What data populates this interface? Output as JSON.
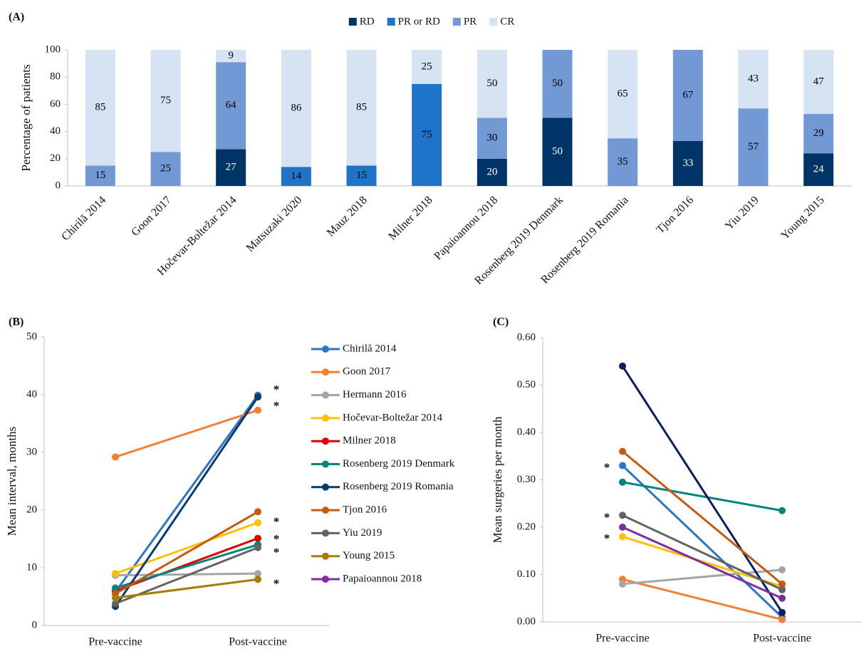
{
  "chart_data": [
    {
      "type": "bar",
      "stacked": true,
      "label": "(A)",
      "ylabel": "Percentage of patients",
      "categories": [
        "Chirilă 2014",
        "Goon 2017",
        "Hočevar-Boltežar 2014",
        "Matsuzaki 2020",
        "Mauz 2018",
        "Milner 2018",
        "Papaioannou 2018",
        "Rosenberg 2019 Denmark",
        "Rosenberg 2019 Romania",
        "Tjon 2016",
        "Yiu 2019",
        "Young 2015"
      ],
      "series": [
        {
          "name": "RD",
          "color": "#003366",
          "label_color": "#ffffff",
          "values": [
            null,
            null,
            27,
            null,
            null,
            null,
            20,
            50,
            null,
            33,
            null,
            24
          ]
        },
        {
          "name": "PR or RD",
          "color": "#1f74c8",
          "label_color": "#000000",
          "values": [
            null,
            null,
            null,
            14,
            15,
            75,
            null,
            null,
            null,
            null,
            null,
            null
          ]
        },
        {
          "name": "PR",
          "color": "#7399d4",
          "label_color": "#000000",
          "values": [
            15,
            25,
            64,
            null,
            null,
            null,
            30,
            50,
            35,
            67,
            57,
            29
          ]
        },
        {
          "name": "CR",
          "color": "#d6e3f3",
          "label_color": "#000000",
          "values": [
            85,
            75,
            9,
            86,
            85,
            25,
            50,
            null,
            65,
            null,
            43,
            47
          ]
        }
      ],
      "ylim": [
        0,
        100
      ],
      "yticks": [
        0,
        20,
        40,
        60,
        80,
        100
      ],
      "legend": "top"
    },
    {
      "type": "line",
      "label": "(B)",
      "ylabel": "Mean interval, months",
      "categories": [
        "Pre-vaccine",
        "Post-vaccine"
      ],
      "series": [
        {
          "name": "Chirilă 2014",
          "color": "#2e75c6",
          "values": [
            5.8,
            39.9
          ]
        },
        {
          "name": "Goon 2017",
          "color": "#f47f30",
          "values": [
            29.2,
            37.3
          ]
        },
        {
          "name": "Hermann 2016",
          "color": "#a5a5a5",
          "values": [
            8.7,
            9.0
          ]
        },
        {
          "name": "Hočevar-Boltežar 2014",
          "color": "#ffc000",
          "values": [
            9.0,
            17.8
          ]
        },
        {
          "name": "Milner 2018",
          "color": "#e00000",
          "values": [
            6.0,
            15.1
          ]
        },
        {
          "name": "Rosenberg 2019 Denmark",
          "color": "#00857a",
          "values": [
            6.5,
            14.0
          ]
        },
        {
          "name": "Rosenberg 2019 Romania",
          "color": "#0b3a6e",
          "values": [
            3.3,
            39.6
          ]
        },
        {
          "name": "Tjon 2016",
          "color": "#c55a11",
          "values": [
            5.5,
            19.7
          ]
        },
        {
          "name": "Yiu 2019",
          "color": "#636363",
          "values": [
            3.8,
            13.5
          ]
        },
        {
          "name": "Young 2015",
          "color": "#a57e00",
          "values": [
            4.8,
            8.0
          ]
        },
        {
          "name": "Papaioannou 2018",
          "color": "#7e2f9e",
          "values": [
            null,
            null
          ]
        }
      ],
      "ylim": [
        0,
        50
      ],
      "yticks": [
        0,
        10,
        20,
        30,
        40,
        50
      ],
      "legend": "right",
      "annotations": [
        {
          "text": "*",
          "x": "Post-vaccine",
          "y": 41.2
        },
        {
          "text": "*",
          "x": "Post-vaccine",
          "y": 38.4
        },
        {
          "text": "*",
          "x": "Post-vaccine",
          "y": 18.3
        },
        {
          "text": "*",
          "x": "Post-vaccine",
          "y": 15.3
        },
        {
          "text": "*",
          "x": "Post-vaccine",
          "y": 13.0
        },
        {
          "text": "*",
          "x": "Post-vaccine",
          "y": 7.6
        }
      ]
    },
    {
      "type": "line",
      "label": "(C)",
      "ylabel": "Mean surgeries per month",
      "categories": [
        "Pre-vaccine",
        "Post-vaccine"
      ],
      "series": [
        {
          "color": "#2e75c6",
          "values": [
            0.33,
            0.01
          ]
        },
        {
          "color": "#f47f30",
          "values": [
            0.09,
            0.005
          ]
        },
        {
          "color": "#a5a5a5",
          "values": [
            0.08,
            0.11
          ]
        },
        {
          "color": "#ffc000",
          "values": [
            0.18,
            0.075
          ]
        },
        {
          "color": "#e00000",
          "values": [
            null,
            null
          ]
        },
        {
          "color": "#00857a",
          "values": [
            0.295,
            0.235
          ]
        },
        {
          "color": "#0b1f5e",
          "values": [
            0.54,
            0.02
          ]
        },
        {
          "color": "#c55a11",
          "values": [
            0.36,
            0.08
          ]
        },
        {
          "color": "#636363",
          "values": [
            0.225,
            0.068
          ]
        },
        {
          "color": "#a57e00",
          "values": [
            null,
            null
          ]
        },
        {
          "color": "#7e2f9e",
          "values": [
            0.2,
            0.05
          ]
        }
      ],
      "ylim": [
        0,
        0.6
      ],
      "yticks": [
        {
          "value": 0,
          "label": "0.00"
        },
        {
          "value": 0.1,
          "label": "0.10"
        },
        {
          "value": 0.2,
          "label": "0.20"
        },
        {
          "value": 0.3,
          "label": "0.30"
        },
        {
          "value": 0.4,
          "label": "0.40"
        },
        {
          "value": 0.5,
          "label": "0.50"
        },
        {
          "value": 0.6,
          "label": "0.60"
        }
      ],
      "annotations": [
        {
          "text": "*",
          "x": "Pre-vaccine",
          "y": 0.33
        },
        {
          "text": "*",
          "x": "Pre-vaccine",
          "y": 0.225
        },
        {
          "text": "*",
          "x": "Pre-vaccine",
          "y": 0.18
        }
      ]
    }
  ]
}
